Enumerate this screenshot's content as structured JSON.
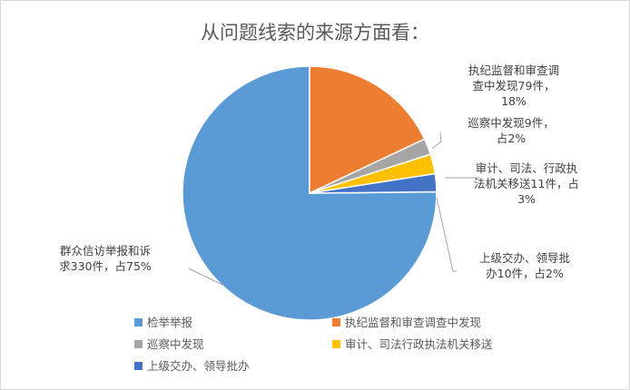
{
  "chart_data": {
    "type": "pie",
    "title": "从问题线索的来源方面看：",
    "slices": [
      {
        "name": "检举举报",
        "value": 330,
        "percent": 75,
        "color": "#5B9BD5",
        "label_lines": [
          "群众信访举报和诉",
          "求330件，占75%"
        ]
      },
      {
        "name": "执纪监督和审查调查中发现",
        "value": 79,
        "percent": 18,
        "color": "#ED7D31",
        "label_lines": [
          "执纪监督和审查调",
          "查中发现79件，",
          "18%"
        ]
      },
      {
        "name": "巡察中发现",
        "value": 9,
        "percent": 2,
        "color": "#A5A5A5",
        "label_lines": [
          "巡察中发现9件，",
          "占2%"
        ]
      },
      {
        "name": "审计、司法行政执法机关移送",
        "value": 11,
        "percent": 3,
        "color": "#FFC000",
        "label_lines": [
          "审计、司法、行政执",
          "法机关移送11件，占",
          "3%"
        ]
      },
      {
        "name": "上级交办、领导批办",
        "value": 10,
        "percent": 2,
        "color": "#4472C4",
        "label_lines": [
          "上级交办、领导批",
          "办10件，占2%"
        ]
      }
    ],
    "legend_position": "bottom"
  }
}
